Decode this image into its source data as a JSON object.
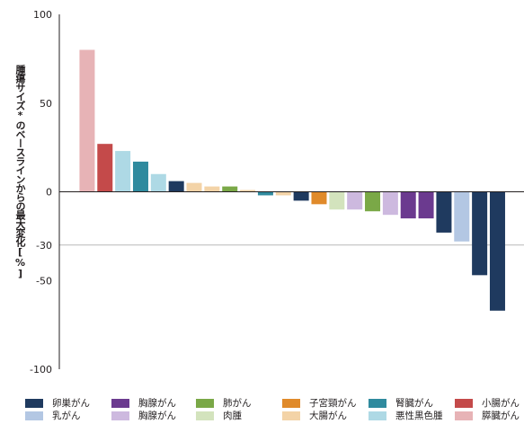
{
  "chart_data": {
    "type": "bar",
    "title": "",
    "ylabel": "腫瘍サイズ*のベースラインからの最大変化[%]",
    "xlabel": "",
    "ylim": [
      -100,
      100
    ],
    "yticks": [
      "100",
      "50",
      "0",
      "-30",
      "-50",
      "-100"
    ],
    "ytick_values": [
      100,
      50,
      0,
      -30,
      -50,
      -100
    ],
    "reference_line": -30,
    "grid": false,
    "legend_position": "bottom",
    "categories": [
      {
        "key": "ovarian",
        "label": "卵巣がん",
        "color": "#1f3a5f"
      },
      {
        "key": "thymic",
        "label": "胸腺がん",
        "color": "#6b3a8f"
      },
      {
        "key": "lung",
        "label": "肺がん",
        "color": "#7aa847"
      },
      {
        "key": "cervical",
        "label": "子宮頸がん",
        "color": "#e08a2a"
      },
      {
        "key": "renal",
        "label": "腎臓がん",
        "color": "#2f8a9e"
      },
      {
        "key": "small_intestine",
        "label": "小腸がん",
        "color": "#c44a4a"
      },
      {
        "key": "breast",
        "label": "乳がん",
        "color": "#b3c7e3"
      },
      {
        "key": "thymoma",
        "label": "胸腺がん",
        "color": "#cdb9df"
      },
      {
        "key": "sarcoma",
        "label": "肉腫",
        "color": "#d3e3bd"
      },
      {
        "key": "colorectal",
        "label": "大腸がん",
        "color": "#f3d3a7"
      },
      {
        "key": "melanoma",
        "label": "悪性黒色腫",
        "color": "#aed9e5"
      },
      {
        "key": "pancreatic",
        "label": "膵臓がん",
        "color": "#e7b3b6"
      }
    ],
    "bars": [
      {
        "category": "pancreatic",
        "value": 80
      },
      {
        "category": "small_intestine",
        "value": 27
      },
      {
        "category": "melanoma",
        "value": 23
      },
      {
        "category": "renal",
        "value": 17
      },
      {
        "category": "melanoma",
        "value": 10
      },
      {
        "category": "ovarian",
        "value": 6
      },
      {
        "category": "colorectal",
        "value": 5
      },
      {
        "category": "colorectal",
        "value": 3
      },
      {
        "category": "lung",
        "value": 3
      },
      {
        "category": "colorectal",
        "value": 1
      },
      {
        "category": "renal",
        "value": -2
      },
      {
        "category": "colorectal",
        "value": -2
      },
      {
        "category": "ovarian",
        "value": -5
      },
      {
        "category": "cervical",
        "value": -7
      },
      {
        "category": "sarcoma",
        "value": -10
      },
      {
        "category": "thymoma",
        "value": -10
      },
      {
        "category": "lung",
        "value": -11
      },
      {
        "category": "thymoma",
        "value": -13
      },
      {
        "category": "thymic",
        "value": -15
      },
      {
        "category": "thymic",
        "value": -15
      },
      {
        "category": "ovarian",
        "value": -23
      },
      {
        "category": "breast",
        "value": -28
      },
      {
        "category": "ovarian",
        "value": -47
      },
      {
        "category": "ovarian",
        "value": -67
      }
    ]
  }
}
